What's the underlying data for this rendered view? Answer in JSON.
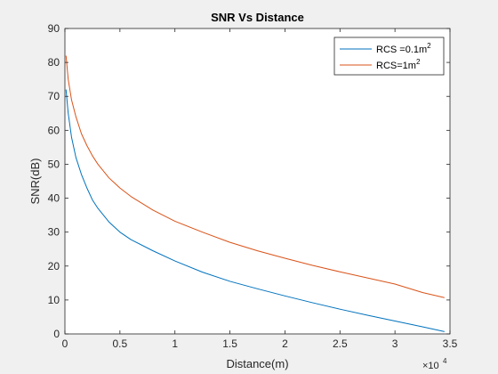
{
  "chart_data": {
    "type": "line",
    "title": "SNR Vs Distance",
    "xlabel": "Distance(m)",
    "ylabel": "SNR(dB)",
    "x_exponent_label": "×10",
    "x_exponent_power": "4",
    "xlim": [
      0,
      35000
    ],
    "ylim": [
      0,
      90
    ],
    "x_ticks": [
      0,
      5000,
      10000,
      15000,
      20000,
      25000,
      30000,
      35000
    ],
    "x_tick_labels": [
      "0",
      "0.5",
      "1",
      "1.5",
      "2",
      "2.5",
      "3",
      "3.5"
    ],
    "y_ticks": [
      0,
      10,
      20,
      30,
      40,
      50,
      60,
      70,
      80,
      90
    ],
    "y_tick_labels": [
      "0",
      "10",
      "20",
      "30",
      "40",
      "50",
      "60",
      "70",
      "80",
      "90"
    ],
    "grid": false,
    "legend_position": "top-right",
    "series": [
      {
        "name": "RCS =0.1m",
        "name_superscript": "2",
        "color": "#0072BD",
        "x": [
          100,
          300,
          600,
          1000,
          1500,
          2000,
          2500,
          3000,
          4000,
          5000,
          6000,
          8000,
          10000,
          12500,
          15000,
          17500,
          20000,
          22500,
          25000,
          27500,
          30000,
          32500,
          34500
        ],
        "y": [
          72,
          65,
          58,
          52,
          47,
          43,
          39.5,
          37,
          33,
          30,
          27.8,
          24.5,
          21.5,
          18.2,
          15.5,
          13.3,
          11.2,
          9.2,
          7.3,
          5.5,
          3.8,
          2.1,
          0.7
        ]
      },
      {
        "name": "RCS=1m",
        "name_superscript": "2",
        "color": "#D95319",
        "x": [
          100,
          300,
          600,
          1000,
          1500,
          2000,
          2500,
          3000,
          4000,
          5000,
          6000,
          8000,
          10000,
          12500,
          15000,
          17500,
          20000,
          22500,
          25000,
          27500,
          30000,
          32500,
          34500
        ],
        "y": [
          82,
          75,
          69,
          64,
          59,
          55.5,
          52.5,
          50,
          46,
          43,
          40.5,
          36.5,
          33.2,
          30,
          27,
          24.5,
          22.3,
          20.2,
          18.3,
          16.5,
          14.7,
          12.2,
          10.7
        ]
      }
    ]
  }
}
